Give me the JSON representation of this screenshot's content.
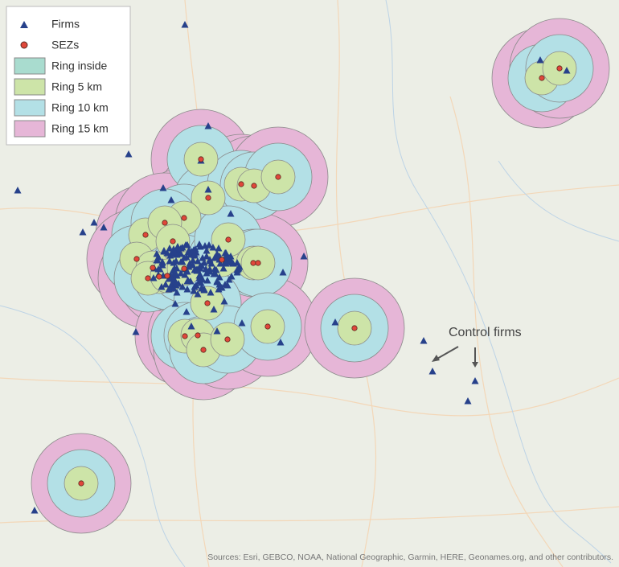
{
  "legend": {
    "items": [
      "Firms",
      "SEZs",
      "Ring inside",
      "Ring 5 km",
      "Ring 10 km",
      "Ring 15 km"
    ]
  },
  "annotation": "Control firms",
  "attribution": "Sources: Esri, GEBCO, NOAA, National Geographic, Garmin, HERE, Geonames.org, and other contributors."
}
